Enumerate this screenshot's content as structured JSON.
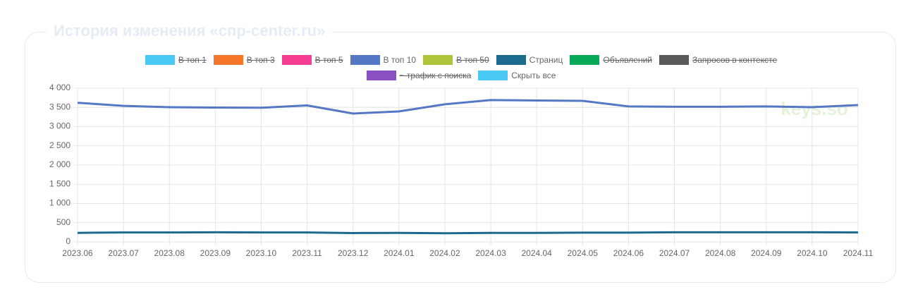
{
  "chart_data": {
    "type": "line",
    "title": "История изменения «спр-center.ru»",
    "watermark": "keys.so",
    "legend": [
      {
        "name": "В топ 1",
        "color": "#4bc9f5",
        "hidden": true
      },
      {
        "name": "В топ 3",
        "color": "#f7772a",
        "hidden": true
      },
      {
        "name": "В топ 5",
        "color": "#f53d94",
        "hidden": true
      },
      {
        "name": "В топ 10",
        "color": "#5478c4",
        "hidden": false
      },
      {
        "name": "В топ 50",
        "color": "#b0c43a",
        "hidden": true
      },
      {
        "name": "Страниц",
        "color": "#1c6a8e",
        "hidden": false
      },
      {
        "name": "Объявлений",
        "color": "#0aa859",
        "hidden": true
      },
      {
        "name": "Запросов в контексте",
        "color": "#58595b",
        "hidden": true
      },
      {
        "name": "~ трафик с поиска",
        "color": "#8a4fc3",
        "hidden": true
      }
    ],
    "hide_all": {
      "name": "Скрыть все",
      "color": "#4bc9f5"
    },
    "categories": [
      "2023.06",
      "2023.07",
      "2023.08",
      "2023.09",
      "2023.10",
      "2023.11",
      "2023.12",
      "2024.01",
      "2024.02",
      "2024.03",
      "2024.04",
      "2024.05",
      "2024.06",
      "2024.07",
      "2024.08",
      "2024.09",
      "2024.10",
      "2024.11"
    ],
    "series": [
      {
        "name": "В топ 10",
        "color": "#5478c4",
        "values": [
          3620,
          3540,
          3505,
          3495,
          3490,
          3550,
          3340,
          3395,
          3580,
          3690,
          3680,
          3670,
          3525,
          3515,
          3515,
          3525,
          3505,
          3560
        ]
      },
      {
        "name": "Страниц",
        "color": "#1c6a8e",
        "values": [
          235,
          245,
          245,
          250,
          245,
          245,
          230,
          235,
          225,
          235,
          235,
          240,
          240,
          250,
          250,
          250,
          250,
          245
        ]
      }
    ],
    "ylim": [
      0,
      4000
    ],
    "yticks": [
      0,
      500,
      {
        "value": 1000,
        "label": "1 000"
      },
      {
        "value": 1500,
        "label": "1 500"
      },
      {
        "value": 2000,
        "label": "2 000"
      },
      {
        "value": 2500,
        "label": "2 500"
      },
      {
        "value": 3000,
        "label": "3 000"
      },
      {
        "value": 3500,
        "label": "3 500"
      },
      {
        "value": 4000,
        "label": "4 000"
      }
    ],
    "grid": true
  }
}
